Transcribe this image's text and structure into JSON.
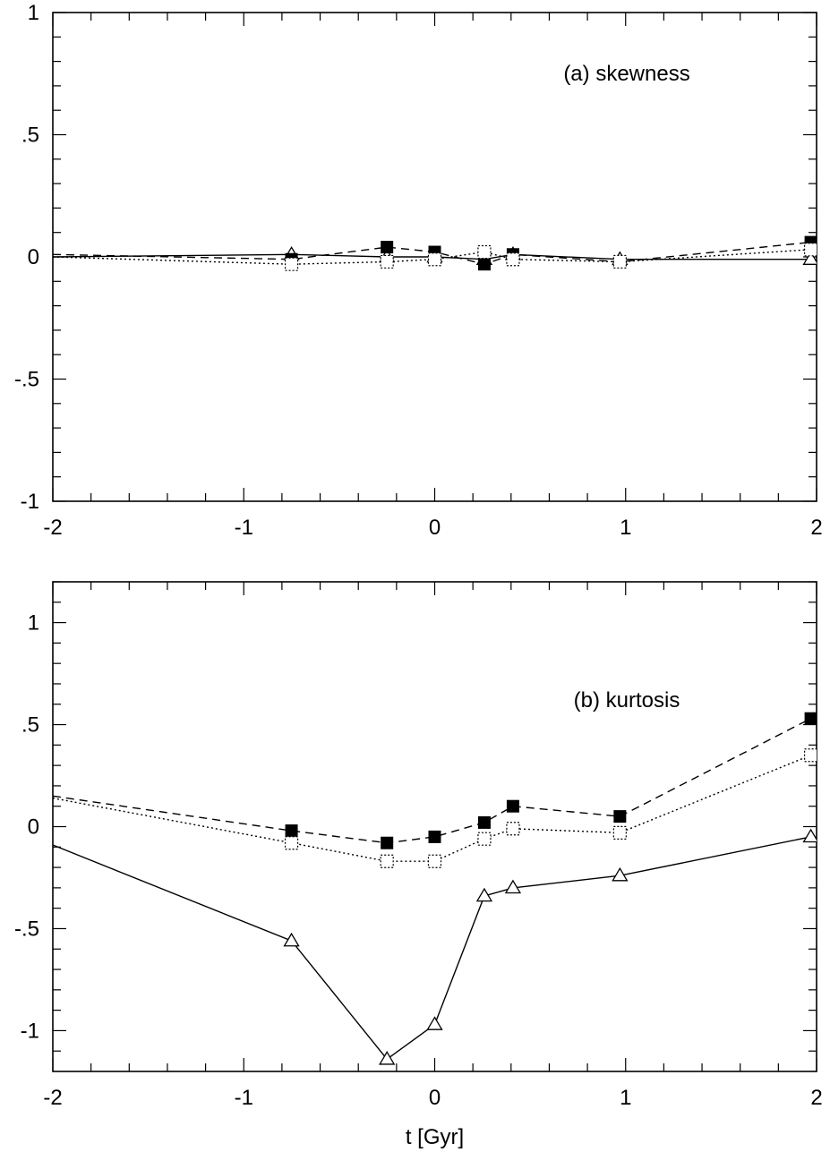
{
  "chart_data": [
    {
      "type": "line",
      "title": "(a) skewness",
      "xlabel": "",
      "ylabel": "",
      "xlim": [
        -2,
        2
      ],
      "ylim": [
        -1,
        1
      ],
      "x_ticks": [
        -2,
        -1,
        0,
        1,
        2
      ],
      "x_tick_labels": [
        "-2",
        "-1",
        "0",
        "1",
        "2"
      ],
      "y_ticks": [
        -1,
        -0.5,
        0,
        0.5,
        1
      ],
      "y_tick_labels": [
        "-1",
        "-.5",
        "0",
        ".5",
        "1"
      ],
      "grid": false,
      "legend": "none",
      "series": [
        {
          "style": "solid",
          "marker": "open-triangle",
          "x": [
            -2.0,
            -0.75,
            -0.25,
            0.0,
            0.26,
            0.41,
            0.97,
            1.97
          ],
          "y": [
            0.0,
            0.01,
            0.0,
            0.0,
            -0.01,
            0.01,
            -0.01,
            -0.01
          ]
        },
        {
          "style": "dashed",
          "marker": "filled-square",
          "x": [
            -2.0,
            -0.75,
            -0.25,
            0.0,
            0.26,
            0.41,
            0.97,
            1.97
          ],
          "y": [
            0.01,
            -0.01,
            0.04,
            0.02,
            -0.03,
            0.01,
            -0.02,
            0.06
          ]
        },
        {
          "style": "dotted",
          "marker": "open-square",
          "x": [
            -2.0,
            -0.75,
            -0.25,
            0.0,
            0.26,
            0.41,
            0.97,
            1.97
          ],
          "y": [
            0.0,
            -0.03,
            -0.02,
            -0.01,
            0.02,
            -0.01,
            -0.02,
            0.03
          ]
        }
      ]
    },
    {
      "type": "line",
      "title": "(b) kurtosis",
      "xlabel": "t [Gyr]",
      "ylabel": "",
      "xlim": [
        -2,
        2
      ],
      "ylim": [
        -1.2,
        1.2
      ],
      "x_ticks": [
        -2,
        -1,
        0,
        1,
        2
      ],
      "x_tick_labels": [
        "-2",
        "-1",
        "0",
        "1",
        "2"
      ],
      "y_ticks": [
        -1,
        -0.5,
        0,
        0.5,
        1
      ],
      "y_tick_labels": [
        "-1",
        "-.5",
        "0",
        ".5",
        "1"
      ],
      "grid": false,
      "legend": "none",
      "series": [
        {
          "style": "solid",
          "marker": "open-triangle",
          "x": [
            -2.0,
            -0.75,
            -0.25,
            0.0,
            0.26,
            0.41,
            0.97,
            1.97
          ],
          "y": [
            -0.09,
            -0.56,
            -1.14,
            -0.97,
            -0.34,
            -0.3,
            -0.24,
            -0.05
          ]
        },
        {
          "style": "dashed",
          "marker": "filled-square",
          "x": [
            -2.0,
            -0.75,
            -0.25,
            0.0,
            0.26,
            0.41,
            0.97,
            1.97
          ],
          "y": [
            0.15,
            -0.02,
            -0.08,
            -0.05,
            0.02,
            0.1,
            0.05,
            0.53
          ]
        },
        {
          "style": "dotted",
          "marker": "open-square",
          "x": [
            -2.0,
            -0.75,
            -0.25,
            0.0,
            0.26,
            0.41,
            0.97,
            1.97
          ],
          "y": [
            0.14,
            -0.08,
            -0.17,
            -0.17,
            -0.06,
            -0.01,
            -0.03,
            0.35
          ]
        }
      ]
    }
  ]
}
